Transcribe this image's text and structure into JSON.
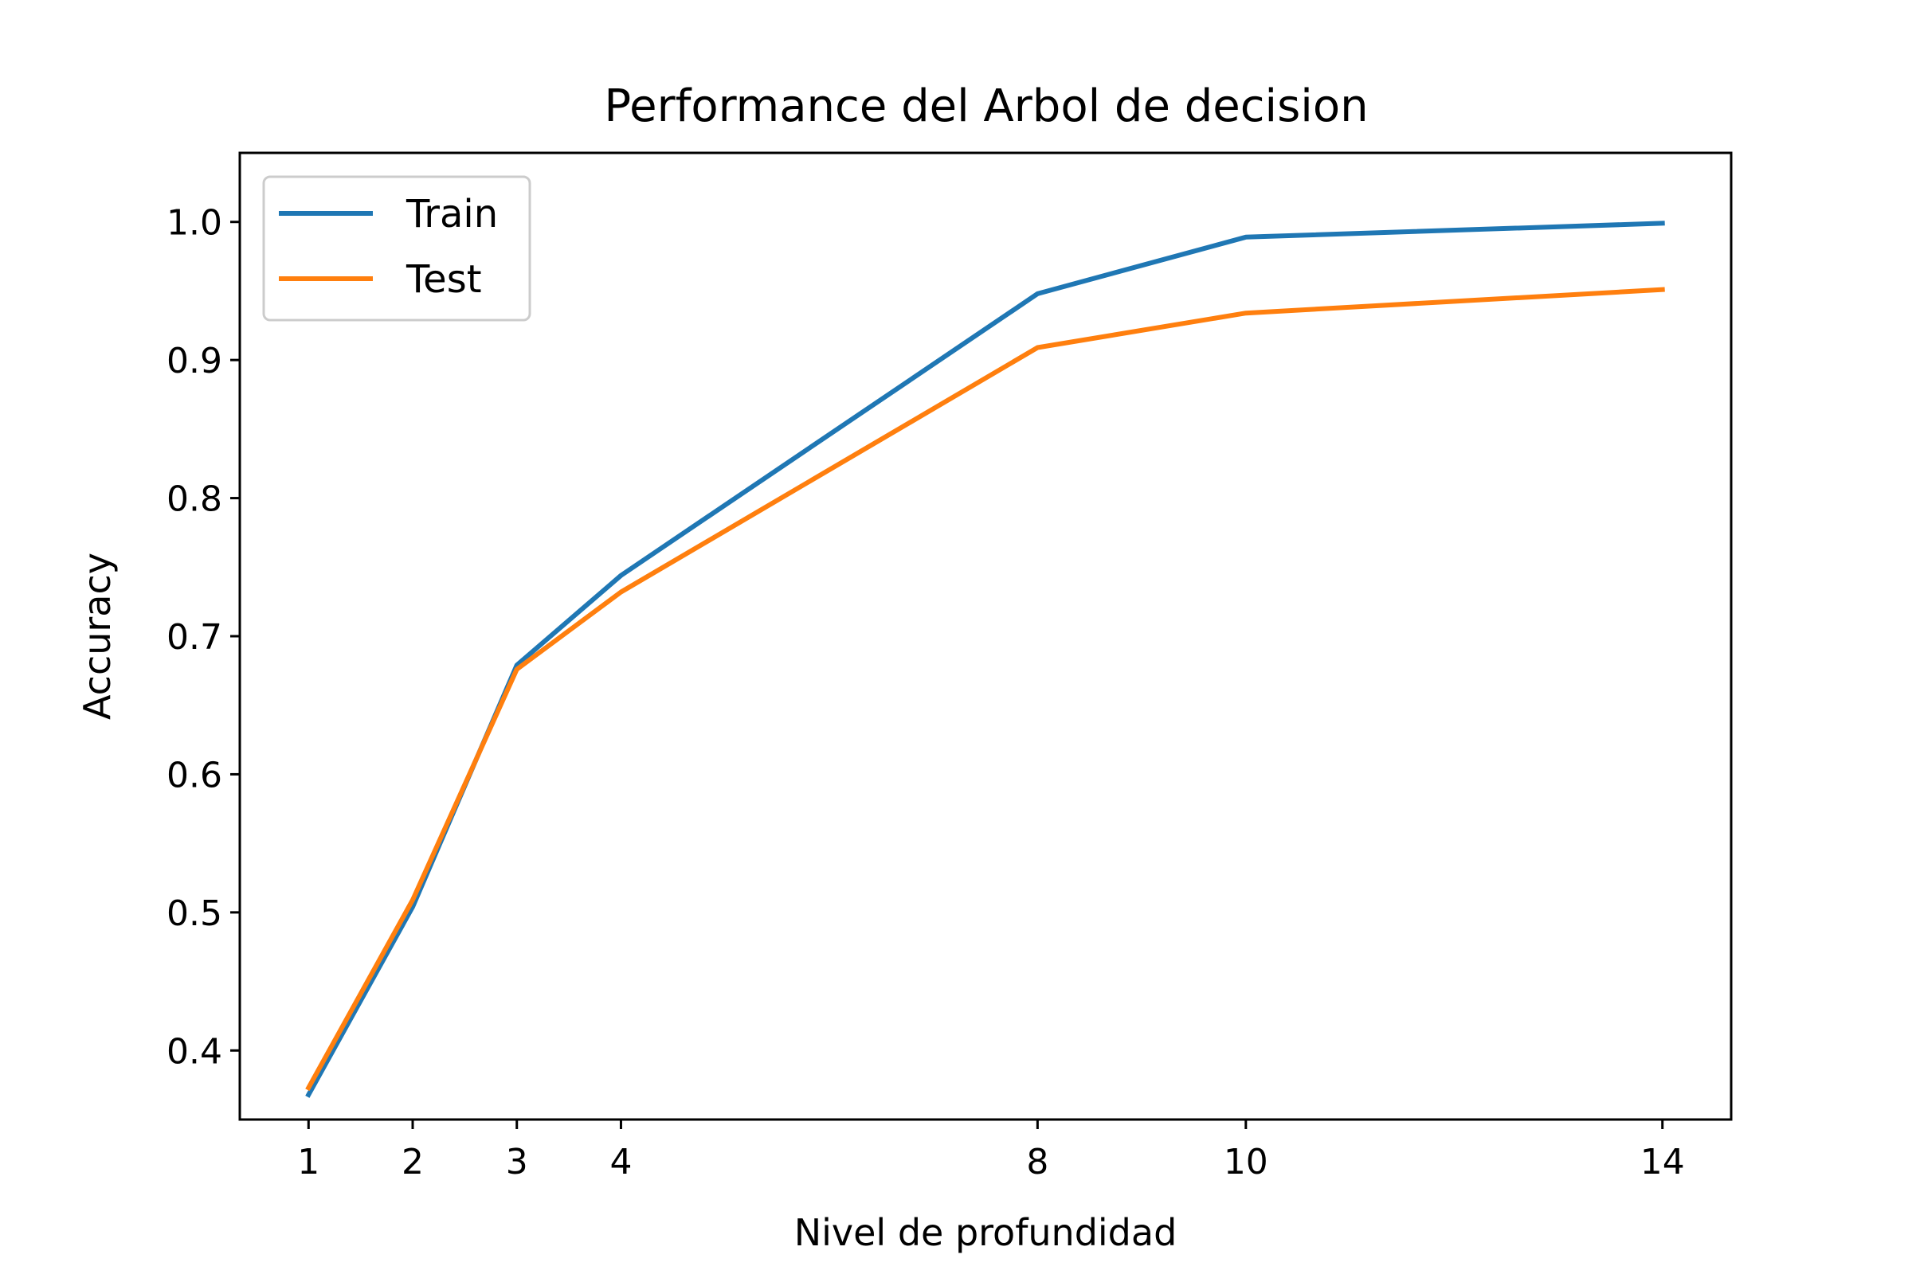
{
  "chart_data": {
    "type": "line",
    "title": "Performance del Arbol de decision",
    "xlabel": "Nivel de profundidad",
    "ylabel": "Accuracy",
    "x": [
      1,
      2,
      3,
      4,
      8,
      10,
      14
    ],
    "xticks": [
      "1",
      "2",
      "3",
      "4",
      "8",
      "10",
      "14"
    ],
    "xlim": [
      0.34,
      14.66
    ],
    "ylim": [
      0.35,
      1.05
    ],
    "yticks": [
      "0.4",
      "0.5",
      "0.6",
      "0.7",
      "0.8",
      "0.9",
      "1.0"
    ],
    "grid": false,
    "legend_position": "upper-left",
    "series": [
      {
        "name": "Train",
        "color": "#1f77b4",
        "values": [
          0.368,
          0.504,
          0.679,
          0.744,
          0.948,
          0.989,
          0.999
        ]
      },
      {
        "name": "Test",
        "color": "#ff7f0e",
        "values": [
          0.373,
          0.509,
          0.676,
          0.732,
          0.909,
          0.934,
          0.951
        ]
      }
    ]
  }
}
